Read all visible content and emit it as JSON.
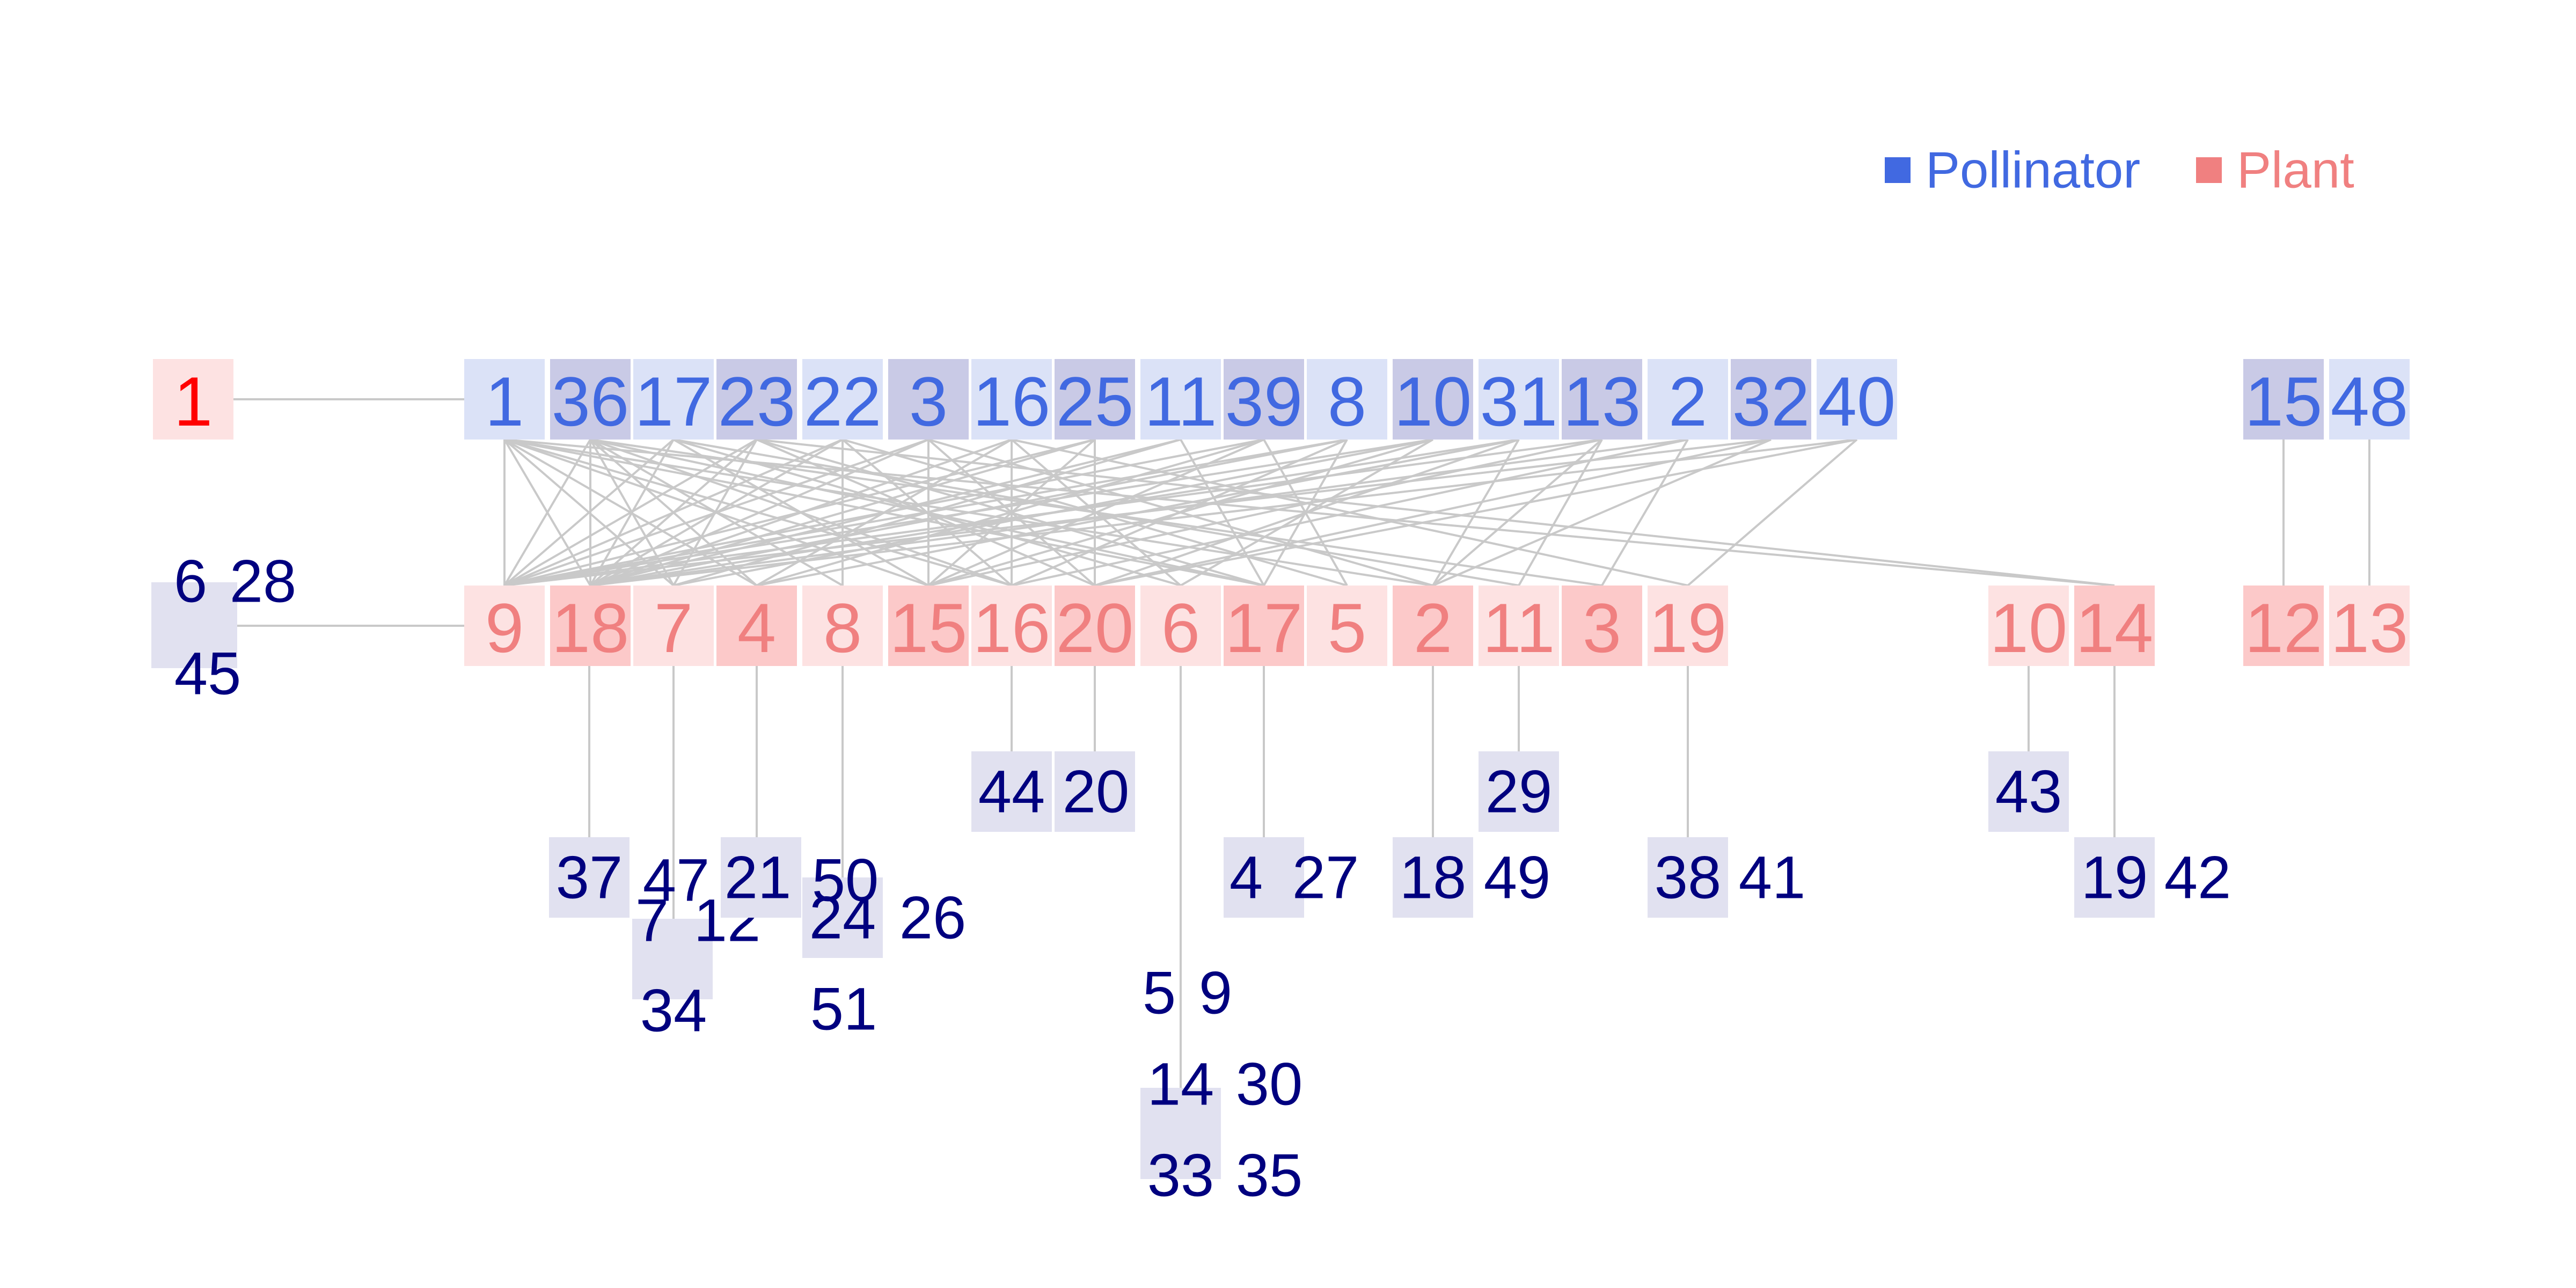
{
  "colors": {
    "pollinator_text": "#4169e1",
    "plant_text": "#f08080",
    "highlight_plant_text": "#ff0000",
    "group_text": "#00007f",
    "edge": "#c9c9c9",
    "pollinator_fill_light": "#dbe2f7",
    "pollinator_fill_dark": "#c9cae6",
    "plant_fill_light": "#fde2e2",
    "plant_fill_dark": "#fcc9c9",
    "group_fill": "#e1e1f0",
    "legend_pollinator": "#4169e1",
    "legend_plant": "#f08080"
  },
  "legend": [
    {
      "label": "Pollinator",
      "color": "pollinator"
    },
    {
      "label": "Plant",
      "color": "plant"
    }
  ],
  "pollinators": [
    {
      "id": "1",
      "shade": "light"
    },
    {
      "id": "36",
      "shade": "dark"
    },
    {
      "id": "17",
      "shade": "light"
    },
    {
      "id": "23",
      "shade": "dark"
    },
    {
      "id": "22",
      "shade": "light"
    },
    {
      "id": "3",
      "shade": "dark"
    },
    {
      "id": "16",
      "shade": "light"
    },
    {
      "id": "25",
      "shade": "dark"
    },
    {
      "id": "11",
      "shade": "light"
    },
    {
      "id": "39",
      "shade": "dark"
    },
    {
      "id": "8",
      "shade": "light"
    },
    {
      "id": "10",
      "shade": "dark"
    },
    {
      "id": "31",
      "shade": "light"
    },
    {
      "id": "13",
      "shade": "dark"
    },
    {
      "id": "2",
      "shade": "light"
    },
    {
      "id": "32",
      "shade": "dark"
    },
    {
      "id": "40",
      "shade": "light"
    },
    {
      "id": "15",
      "shade": "dark"
    },
    {
      "id": "48",
      "shade": "light"
    }
  ],
  "plants": [
    {
      "id": "1",
      "shade": "light",
      "highlight": true
    },
    {
      "id": "9",
      "shade": "light"
    },
    {
      "id": "18",
      "shade": "dark"
    },
    {
      "id": "7",
      "shade": "light"
    },
    {
      "id": "4",
      "shade": "dark"
    },
    {
      "id": "8",
      "shade": "light"
    },
    {
      "id": "15",
      "shade": "dark"
    },
    {
      "id": "16",
      "shade": "light"
    },
    {
      "id": "20",
      "shade": "dark"
    },
    {
      "id": "6",
      "shade": "light"
    },
    {
      "id": "17",
      "shade": "dark"
    },
    {
      "id": "5",
      "shade": "light"
    },
    {
      "id": "2",
      "shade": "dark"
    },
    {
      "id": "11",
      "shade": "light"
    },
    {
      "id": "3",
      "shade": "dark"
    },
    {
      "id": "19",
      "shade": "light"
    },
    {
      "id": "10",
      "shade": "light"
    },
    {
      "id": "14",
      "shade": "dark"
    },
    {
      "id": "12",
      "shade": "dark"
    },
    {
      "id": "13",
      "shade": "light"
    }
  ],
  "pollinator_groups": [
    {
      "attached_to_plant": "9",
      "members": [
        "6",
        "28",
        "45"
      ]
    },
    {
      "attached_to_plant": "18",
      "members": [
        "37"
      ]
    },
    {
      "attached_to_plant": "7",
      "members": [
        "7",
        "12",
        "34",
        "47"
      ]
    },
    {
      "attached_to_plant": "4",
      "members": [
        "21"
      ]
    },
    {
      "attached_to_plant": "8",
      "members": [
        "24",
        "26",
        "51",
        "50"
      ]
    },
    {
      "attached_to_plant": "16",
      "members": [
        "44"
      ]
    },
    {
      "attached_to_plant": "20",
      "members": [
        "20"
      ]
    },
    {
      "attached_to_plant": "6",
      "members": [
        "5",
        "9",
        "14",
        "30",
        "33",
        "35"
      ]
    },
    {
      "attached_to_plant": "17",
      "members": [
        "4",
        "27"
      ]
    },
    {
      "attached_to_plant": "2",
      "members": [
        "18",
        "49"
      ]
    },
    {
      "attached_to_plant": "11",
      "members": [
        "29"
      ]
    },
    {
      "attached_to_plant": "19",
      "members": [
        "38",
        "41"
      ]
    },
    {
      "attached_to_plant": "10",
      "members": [
        "43"
      ]
    },
    {
      "attached_to_plant": "14",
      "members": [
        "19",
        "42"
      ]
    }
  ],
  "edges": [
    [
      "p1",
      "a1"
    ],
    [
      "P1",
      "A9"
    ],
    [
      "P1",
      "A18"
    ],
    [
      "P1",
      "A7"
    ],
    [
      "P1",
      "A4"
    ],
    [
      "P1",
      "A15"
    ],
    [
      "P1",
      "A16"
    ],
    [
      "P1",
      "A17"
    ],
    [
      "P1",
      "A2"
    ],
    [
      "P1",
      "A14"
    ],
    [
      "P36",
      "A9"
    ],
    [
      "P36",
      "A18"
    ],
    [
      "P36",
      "A7"
    ],
    [
      "P36",
      "A4"
    ],
    [
      "P36",
      "A8"
    ],
    [
      "P36",
      "A16"
    ],
    [
      "P36",
      "A17"
    ],
    [
      "P36",
      "A3"
    ],
    [
      "P17",
      "A9"
    ],
    [
      "P17",
      "A18"
    ],
    [
      "P17",
      "A15"
    ],
    [
      "P17",
      "A6"
    ],
    [
      "P17",
      "A11"
    ],
    [
      "P23",
      "A9"
    ],
    [
      "P23",
      "A18"
    ],
    [
      "P23",
      "A7"
    ],
    [
      "P23",
      "A20"
    ],
    [
      "P23",
      "A17"
    ],
    [
      "P23",
      "A14"
    ],
    [
      "P22",
      "A9"
    ],
    [
      "P22",
      "A18"
    ],
    [
      "P22",
      "A8"
    ],
    [
      "P22",
      "A16"
    ],
    [
      "P22",
      "A5"
    ],
    [
      "P3",
      "A9"
    ],
    [
      "P3",
      "A18"
    ],
    [
      "P3",
      "A15"
    ],
    [
      "P3",
      "A20"
    ],
    [
      "P3",
      "A2"
    ],
    [
      "P16",
      "A18"
    ],
    [
      "P16",
      "A4"
    ],
    [
      "P16",
      "A16"
    ],
    [
      "P16",
      "A6"
    ],
    [
      "P16",
      "A19"
    ],
    [
      "P25",
      "A9"
    ],
    [
      "P25",
      "A18"
    ],
    [
      "P25",
      "A15"
    ],
    [
      "P25",
      "A20"
    ],
    [
      "P11",
      "A18"
    ],
    [
      "P11",
      "A7"
    ],
    [
      "P11",
      "A17"
    ],
    [
      "P39",
      "A9"
    ],
    [
      "P39",
      "A4"
    ],
    [
      "P39",
      "A15"
    ],
    [
      "P39",
      "A5"
    ],
    [
      "P8",
      "A9"
    ],
    [
      "P8",
      "A18"
    ],
    [
      "P8",
      "A16"
    ],
    [
      "P8",
      "A17"
    ],
    [
      "P10",
      "A9"
    ],
    [
      "P10",
      "A7"
    ],
    [
      "P10",
      "A15"
    ],
    [
      "P10",
      "A6"
    ],
    [
      "P31",
      "A18"
    ],
    [
      "P31",
      "A4"
    ],
    [
      "P31",
      "A20"
    ],
    [
      "P31",
      "A2"
    ],
    [
      "P13",
      "A9"
    ],
    [
      "P13",
      "A15"
    ],
    [
      "P13",
      "A2"
    ],
    [
      "P13",
      "A11"
    ],
    [
      "P2",
      "A18"
    ],
    [
      "P2",
      "A16"
    ],
    [
      "P2",
      "A3"
    ],
    [
      "P32",
      "A9"
    ],
    [
      "P32",
      "A20"
    ],
    [
      "P32",
      "A2"
    ],
    [
      "P40",
      "A18"
    ],
    [
      "P40",
      "A20"
    ],
    [
      "P40",
      "A19"
    ],
    [
      "P15",
      "A12"
    ],
    [
      "P48",
      "A13"
    ]
  ]
}
